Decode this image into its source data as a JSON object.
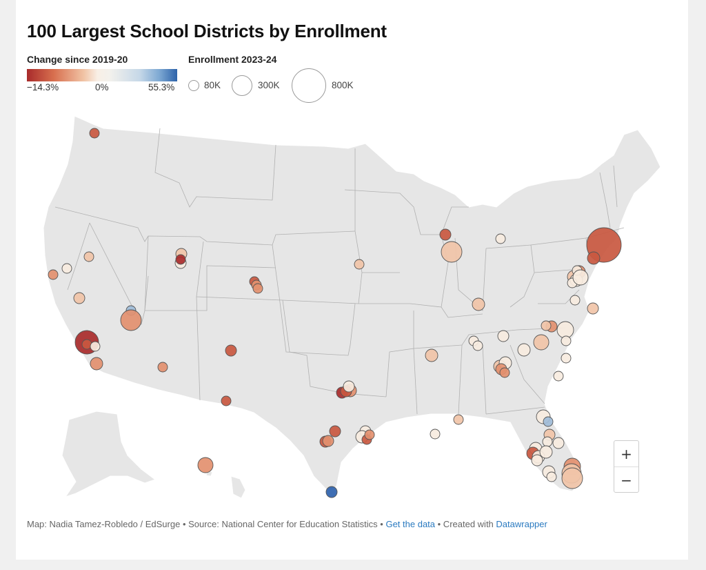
{
  "title": "100 Largest School Districts by Enrollment",
  "legend": {
    "color_title": "Change since 2019-20",
    "color_min": "−14.3%",
    "color_mid": "0%",
    "color_max": "55.3%",
    "size_title": "Enrollment 2023-24",
    "size_labels": [
      "80K",
      "300K",
      "800K"
    ]
  },
  "colors": {
    "dark_red": "#a92b2b",
    "red": "#c95840",
    "salmon": "#e3906f",
    "peach": "#f1c4a8",
    "cream": "#f7ece0",
    "light_blue": "#9fbcd8",
    "blue": "#2e62ad"
  },
  "zoom": {
    "in": "+",
    "out": "−"
  },
  "footer": {
    "credit": "Map: Nadia Tamez-Robledo / EdSurge • Source: National Center for Education Statistics • ",
    "link1": "Get the data",
    "mid": " • Created with ",
    "link2": "Datawrapper"
  }
}
